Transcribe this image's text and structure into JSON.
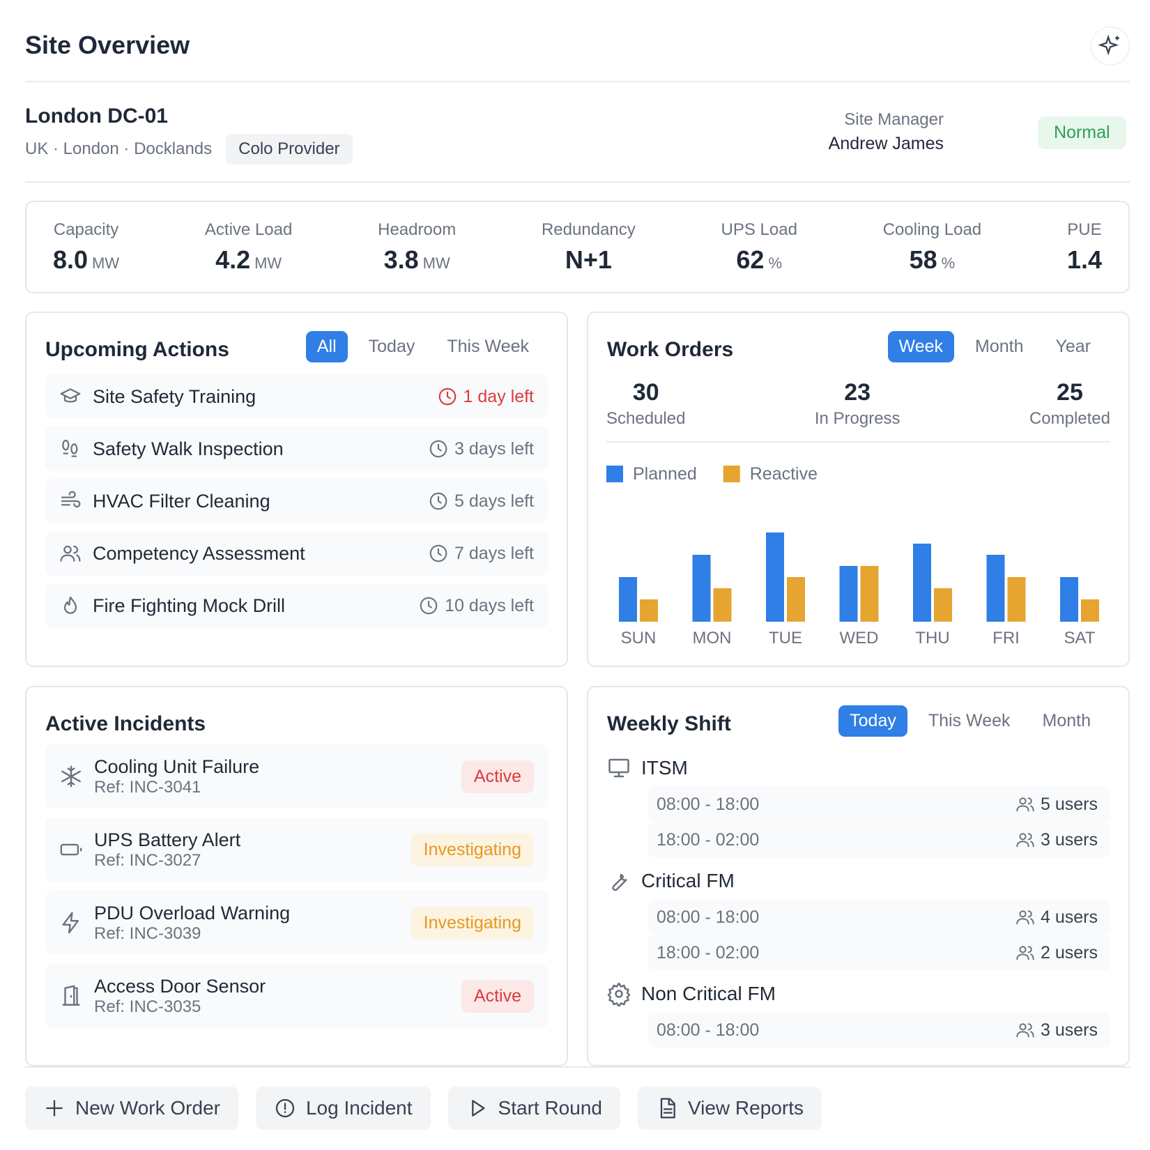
{
  "header": {
    "title": "Site Overview"
  },
  "site": {
    "name": "London DC-01",
    "location": "UK · London · Docklands",
    "tag": "Colo Provider",
    "manager_label": "Site Manager",
    "manager": "Andrew James",
    "status": "Normal"
  },
  "metrics": [
    {
      "label": "Capacity",
      "value": "8.0",
      "unit": "MW"
    },
    {
      "label": "Active Load",
      "value": "4.2",
      "unit": "MW"
    },
    {
      "label": "Headroom",
      "value": "3.8",
      "unit": "MW"
    },
    {
      "label": "Redundancy",
      "value": "N+1"
    },
    {
      "label": "UPS Load",
      "value": "62",
      "unit": "%"
    },
    {
      "label": "Cooling Load",
      "value": "58",
      "unit": "%"
    },
    {
      "label": "PUE",
      "value": "1.4"
    }
  ],
  "upcoming_actions": {
    "title": "Upcoming Actions",
    "filters": [
      "All",
      "Today",
      "This Week"
    ],
    "items": [
      {
        "label": "Site Safety Training",
        "due": "1 day left"
      },
      {
        "label": "Safety Walk Inspection",
        "due": "3 days left"
      },
      {
        "label": "HVAC Filter Cleaning",
        "due": "5 days left"
      },
      {
        "label": "Competency Assessment",
        "due": "7 days left"
      },
      {
        "label": "Fire Fighting Mock Drill",
        "due": "10 days left"
      }
    ]
  },
  "work_orders": {
    "title": "Work Orders",
    "filters": [
      "Week",
      "Month",
      "Year"
    ],
    "stats": [
      {
        "value": 30,
        "label": "Scheduled"
      },
      {
        "value": 23,
        "label": "In Progress"
      },
      {
        "value": 25,
        "label": "Completed"
      }
    ]
  },
  "chart_data": {
    "type": "bar",
    "categories": [
      "SUN",
      "MON",
      "TUE",
      "WED",
      "THU",
      "FRI",
      "SAT"
    ],
    "series": [
      {
        "name": "Planned",
        "color": "#2f7fe6",
        "values": [
          4,
          6,
          8,
          5,
          7,
          6,
          4
        ]
      },
      {
        "name": "Reactive",
        "color": "#e6a431",
        "values": [
          2,
          3,
          4,
          5,
          3,
          4,
          2
        ]
      }
    ]
  },
  "active_incidents": {
    "title": "Active Incidents",
    "items": [
      {
        "title": "Cooling Unit Failure",
        "ref": "Ref: INC-3041",
        "status": "Active"
      },
      {
        "title": "UPS Battery Alert",
        "ref": "Ref: INC-3027",
        "status": "Investigating"
      },
      {
        "title": "PDU Overload Warning",
        "ref": "Ref: INC-3039",
        "status": "Investigating"
      },
      {
        "title": "Access Door Sensor",
        "ref": "Ref: INC-3035",
        "status": "Active"
      }
    ]
  },
  "weekly_shift": {
    "title": "Weekly Shift",
    "filters": [
      "Today",
      "This Week",
      "Month"
    ],
    "groups": [
      {
        "name": "ITSM",
        "shifts": [
          {
            "time": "08:00 - 18:00",
            "users": "5 users"
          },
          {
            "time": "18:00 - 02:00",
            "users": "3 users"
          }
        ]
      },
      {
        "name": "Critical FM",
        "shifts": [
          {
            "time": "08:00 - 18:00",
            "users": "4 users"
          },
          {
            "time": "18:00 - 02:00",
            "users": "2 users"
          }
        ]
      },
      {
        "name": "Non Critical FM",
        "shifts": [
          {
            "time": "08:00 - 18:00",
            "users": "3 users"
          }
        ]
      }
    ]
  },
  "actions": [
    "New Work Order",
    "Log Incident",
    "Start Round",
    "View Reports"
  ]
}
